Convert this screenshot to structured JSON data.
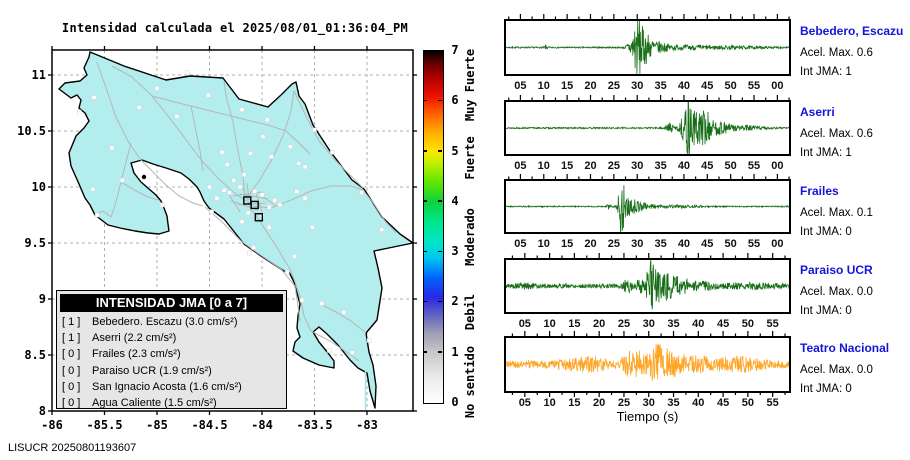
{
  "footer": "LISUCR 20250801193607",
  "chart_data": [
    {
      "type": "map",
      "title": "Intensidad calculada el 2025/08/01_01:36:04_PM",
      "region": "Costa Rica",
      "grid": true,
      "x_tick_labels": [
        "-86",
        "-85.5",
        "-85",
        "-84.5",
        "-84",
        "-83.5",
        "-83"
      ],
      "y_tick_labels": [
        "11",
        "10.5",
        "10",
        "9.5",
        "9",
        "8.5",
        "8"
      ],
      "lon_range": [
        -86,
        -82.56
      ],
      "lat_range": [
        8,
        11.22
      ],
      "land_color": "#b4eded",
      "road_color": "#b6b6b6",
      "stations": [
        {
          "lon": -85.6,
          "lat": 10.8
        },
        {
          "lon": -85.74,
          "lat": 10.67
        },
        {
          "lon": -85.43,
          "lat": 10.35
        },
        {
          "lon": -85.61,
          "lat": 9.98
        },
        {
          "lon": -85.0,
          "lat": 10.88
        },
        {
          "lon": -84.71,
          "lat": 11.02
        },
        {
          "lon": -84.81,
          "lat": 10.63
        },
        {
          "lon": -85.17,
          "lat": 10.71
        },
        {
          "lon": -85.33,
          "lat": 10.06
        },
        {
          "lon": -85.57,
          "lat": 9.75
        },
        {
          "lon": -84.95,
          "lat": 9.84
        },
        {
          "lon": -83.99,
          "lat": 10.45
        },
        {
          "lon": -84.38,
          "lat": 10.31
        },
        {
          "lon": -84.33,
          "lat": 10.2
        },
        {
          "lon": -84.27,
          "lat": 10.06
        },
        {
          "lon": -84.17,
          "lat": 10.11
        },
        {
          "lon": -84.11,
          "lat": 10.3
        },
        {
          "lon": -83.91,
          "lat": 10.27
        },
        {
          "lon": -83.73,
          "lat": 10.36
        },
        {
          "lon": -83.65,
          "lat": 10.21
        },
        {
          "lon": -83.59,
          "lat": 10.18
        },
        {
          "lon": -84.36,
          "lat": 9.97
        },
        {
          "lon": -84.5,
          "lat": 10.0
        },
        {
          "lon": -84.43,
          "lat": 9.9
        },
        {
          "lon": -84.31,
          "lat": 9.95
        },
        {
          "lon": -84.21,
          "lat": 10.0
        },
        {
          "lon": -84.07,
          "lat": 9.96
        },
        {
          "lon": -84.0,
          "lat": 9.93
        },
        {
          "lon": -83.93,
          "lat": 9.82
        },
        {
          "lon": -83.88,
          "lat": 9.88
        },
        {
          "lon": -83.83,
          "lat": 9.84
        },
        {
          "lon": -84.0,
          "lat": 9.75
        },
        {
          "lon": -84.13,
          "lat": 9.77
        },
        {
          "lon": -84.19,
          "lat": 9.69
        },
        {
          "lon": -83.93,
          "lat": 9.64
        },
        {
          "lon": -83.67,
          "lat": 9.96
        },
        {
          "lon": -83.59,
          "lat": 9.9
        },
        {
          "lon": -83.52,
          "lat": 9.64
        },
        {
          "lon": -83.43,
          "lat": 8.96
        },
        {
          "lon": -83.22,
          "lat": 8.88
        },
        {
          "lon": -82.98,
          "lat": 8.63
        },
        {
          "lon": -83.14,
          "lat": 8.52
        },
        {
          "lon": -83.36,
          "lat": 8.54
        },
        {
          "lon": -84.12,
          "lat": 9.41
        },
        {
          "lon": -83.69,
          "lat": 9.38
        },
        {
          "lon": -83.05,
          "lat": 9.95
        },
        {
          "lon": -82.86,
          "lat": 9.62
        },
        {
          "lon": -84.48,
          "lat": 9.78
        },
        {
          "lon": -84.08,
          "lat": 9.46
        },
        {
          "lon": -83.76,
          "lat": 9.24
        },
        {
          "lon": -83.62,
          "lat": 8.99
        },
        {
          "lon": -83.5,
          "lat": 10.51
        },
        {
          "lon": -83.33,
          "lat": 10.31
        },
        {
          "lon": -84.19,
          "lat": 10.69
        },
        {
          "lon": -84.51,
          "lat": 10.82
        },
        {
          "lon": -83.95,
          "lat": 10.6
        }
      ],
      "highlighted_stations": [
        {
          "lon": -84.14,
          "lat": 9.88
        },
        {
          "lon": -84.07,
          "lat": 9.84
        },
        {
          "lon": -84.03,
          "lat": 9.73
        }
      ],
      "colorbar": {
        "min": 0,
        "max": 7,
        "tick_values": [
          0,
          1,
          2,
          3,
          4,
          5,
          6,
          7
        ],
        "stops": [
          [
            0,
            "#ffffff"
          ],
          [
            0.5,
            "#ececec"
          ],
          [
            1,
            "#c8c8cc"
          ],
          [
            1.4,
            "#9c9cb4"
          ],
          [
            1.8,
            "#5a5ac8"
          ],
          [
            2.1,
            "#2828e6"
          ],
          [
            2.5,
            "#0064ff"
          ],
          [
            2.9,
            "#00c8f0"
          ],
          [
            3.2,
            "#00e6c8"
          ],
          [
            3.6,
            "#00e68c"
          ],
          [
            4.0,
            "#0cd23c"
          ],
          [
            4.4,
            "#64e600"
          ],
          [
            4.8,
            "#c8f000"
          ],
          [
            5.0,
            "#ffe600"
          ],
          [
            5.4,
            "#ffaa00"
          ],
          [
            5.8,
            "#ff5500"
          ],
          [
            6.1,
            "#ee1100"
          ],
          [
            6.5,
            "#aa0000"
          ],
          [
            6.8,
            "#550000"
          ],
          [
            7,
            "#000000"
          ]
        ],
        "category_labels": [
          {
            "text": "No sentido",
            "center_value": 0.4
          },
          {
            "text": "Debil",
            "center_value": 1.79
          },
          {
            "text": "Moderado",
            "center_value": 3.28
          },
          {
            "text": "Fuerte",
            "center_value": 4.85
          },
          {
            "text": "Muy Fuerte",
            "center_value": 6.3
          }
        ]
      },
      "legend": {
        "header": "INTENSIDAD JMA [0 a 7]",
        "items": [
          {
            "bracket": "[ 1 ]",
            "text": "Bebedero. Escazu (3.0 cm/s²)"
          },
          {
            "bracket": "[ 1 ]",
            "text": "Aserri (2.2 cm/s²)"
          },
          {
            "bracket": "[ 0 ]",
            "text": "Frailes (2.3 cm/s²)"
          },
          {
            "bracket": "[ 0 ]",
            "text": "Paraiso UCR (1.9 cm/s²)"
          },
          {
            "bracket": "[ 0 ]",
            "text": "San Ignacio Acosta (1.6 cm/s²)"
          },
          {
            "bracket": "[ 0 ]",
            "text": "Agua Caliente (1.5 cm/s²)"
          }
        ]
      }
    },
    {
      "type": "line",
      "xlabel": "Tiempo (s)",
      "panels": [
        {
          "station": "Bebedero, Escazu",
          "acel_text": "Acel. Max. 0.6",
          "int_text": "Int JMA: 1",
          "acel_max": 0.6,
          "int_jma": 1,
          "color": "#186e18",
          "seed": 7,
          "axis_start": 1.7,
          "axis_len": 61,
          "tick_labels": [
            "05",
            "10",
            "15",
            "20",
            "25",
            "30",
            "35",
            "40",
            "45",
            "50",
            "55",
            "00"
          ],
          "noise_base": 0.7,
          "bursts": [
            [
              10.5,
              0.25,
              2.5
            ],
            [
              28.5,
              0.8,
              6
            ],
            [
              30,
              0.9,
              30
            ],
            [
              31.5,
              1.5,
              14
            ],
            [
              34,
              2.5,
              5
            ],
            [
              40,
              6,
              1.8
            ],
            [
              50,
              8,
              1.2
            ]
          ]
        },
        {
          "station": "Aserri",
          "acel_text": "Acel. Max. 0.6",
          "int_text": "Int JMA: 1",
          "acel_max": 0.6,
          "int_jma": 1,
          "color": "#186e18",
          "seed": 13,
          "axis_start": 1.7,
          "axis_len": 61,
          "tick_labels": [
            "05",
            "10",
            "15",
            "20",
            "25",
            "30",
            "35",
            "40",
            "45",
            "50",
            "55",
            "00"
          ],
          "noise_base": 0.7,
          "bursts": [
            [
              37,
              0.8,
              5
            ],
            [
              39.5,
              0.8,
              8
            ],
            [
              41,
              0.9,
              30
            ],
            [
              43,
              1.5,
              16
            ],
            [
              44.8,
              1,
              12
            ],
            [
              47,
              2.5,
              6
            ],
            [
              52,
              5,
              2.5
            ]
          ]
        },
        {
          "station": "Frailes",
          "acel_text": "Acel. Max. 0.1",
          "int_text": "Int JMA: 0",
          "acel_max": 0.1,
          "int_jma": 0,
          "color": "#186e18",
          "seed": 21,
          "axis_start": 1.7,
          "axis_len": 61,
          "tick_labels": [
            "05",
            "10",
            "15",
            "20",
            "25",
            "30",
            "35",
            "40",
            "45",
            "50",
            "55",
            "00"
          ],
          "noise_base": 0.6,
          "bursts": [
            [
              24,
              0.4,
              3
            ],
            [
              26.8,
              0.8,
              32
            ],
            [
              28.5,
              1.5,
              8
            ],
            [
              31,
              2.5,
              3
            ],
            [
              38,
              6,
              1.2
            ]
          ]
        },
        {
          "station": "Paraiso UCR",
          "acel_text": "Acel. Max. 0.0",
          "int_text": "Int JMA: 0",
          "acel_max": 0.0,
          "int_jma": 0,
          "color": "#186e18",
          "seed": 5,
          "axis_start": 1,
          "axis_len": 57.5,
          "tick_labels": [
            "05",
            "10",
            "15",
            "20",
            "25",
            "30",
            "35",
            "40",
            "45",
            "50",
            "55"
          ],
          "noise_base": 2.2,
          "bursts": [
            [
              5,
              2,
              1.5
            ],
            [
              25.5,
              1,
              6
            ],
            [
              28,
              1,
              6
            ],
            [
              30.3,
              0.8,
              24
            ],
            [
              31.8,
              1.2,
              12
            ],
            [
              33.5,
              1.5,
              10
            ],
            [
              36,
              2,
              6
            ],
            [
              40,
              4,
              3
            ],
            [
              50,
              6,
              1.5
            ]
          ]
        },
        {
          "station": "Teatro Nacional",
          "acel_text": "Acel. Max. 0.0",
          "int_text": "Int JMA: 0",
          "acel_max": 0.0,
          "int_jma": 0,
          "color": "#ffa526",
          "seed": 9,
          "axis_start": 1,
          "axis_len": 57.5,
          "tick_labels": [
            "05",
            "10",
            "15",
            "20",
            "25",
            "30",
            "35",
            "40",
            "45",
            "50",
            "55"
          ],
          "noise_base": 4,
          "bursts": [
            [
              14,
              2,
              3
            ],
            [
              17.5,
              2,
              4.5
            ],
            [
              20,
              1.5,
              3
            ],
            [
              26,
              1.5,
              9
            ],
            [
              28.5,
              1.5,
              10
            ],
            [
              31.3,
              1,
              17
            ],
            [
              33,
              1.2,
              14
            ],
            [
              35,
              1.5,
              8
            ],
            [
              38,
              2,
              5
            ],
            [
              41,
              3,
              4
            ],
            [
              46,
              3,
              3
            ],
            [
              50,
              3,
              3.5
            ]
          ]
        }
      ]
    }
  ]
}
